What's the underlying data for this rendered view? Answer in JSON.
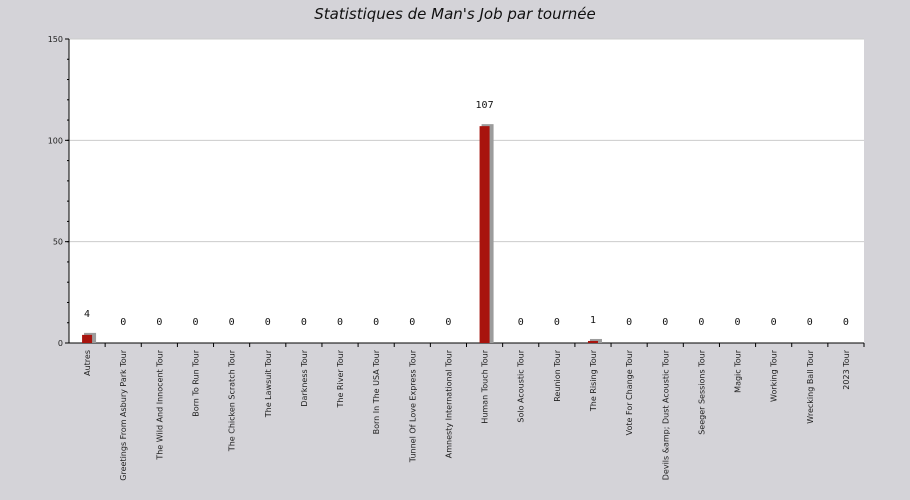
{
  "chart_data": {
    "type": "bar",
    "title": "Statistiques de Man's Job par tournée",
    "xlabel": "",
    "ylabel": "",
    "ylim": [
      0,
      150
    ],
    "yticks": [
      0,
      50,
      100,
      150
    ],
    "grid": true,
    "categories": [
      "Autres",
      "Greetings From Asbury Park Tour",
      "The Wild And Innocent Tour",
      "Born To Run Tour",
      "The Chicken Scratch Tour",
      "The Lawsuit Tour",
      "Darkness Tour",
      "The River Tour",
      "Born In The USA Tour",
      "Tunnel Of Love Express Tour",
      "Amnesty International Tour",
      "Human Touch Tour",
      "Solo Acoustic Tour",
      "Reunion Tour",
      "The Rising Tour",
      "Vote For Change Tour",
      "Devils &amp; Dust Acoustic Tour",
      "Seeger Sessions Tour",
      "Magic Tour",
      "Working Tour",
      "Wrecking Ball Tour",
      "2023 Tour"
    ],
    "values": [
      4,
      0,
      0,
      0,
      0,
      0,
      0,
      0,
      0,
      0,
      0,
      107,
      0,
      0,
      1,
      0,
      0,
      0,
      0,
      0,
      0,
      0
    ],
    "colors": {
      "bar": "#a8140e",
      "bar_shadow": "#9c9c9c",
      "plot_bg": "#ffffff",
      "page_bg": "#d4d3d8",
      "grid": "#cccccc",
      "axis": "#000000"
    }
  }
}
